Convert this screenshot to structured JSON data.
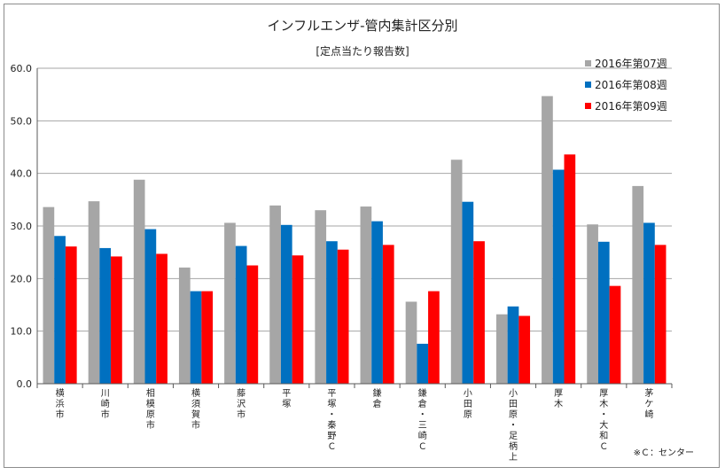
{
  "chart_data": {
    "type": "bar",
    "title": "インフルエンザ-管内集計区分別",
    "subtitle": "[定点当たり報告数]",
    "footnote": "※Ｃ：センター",
    "ylim": [
      0,
      60
    ],
    "yticks": [
      "0.0",
      "10.0",
      "20.0",
      "30.0",
      "40.0",
      "50.0",
      "60.0"
    ],
    "grid": true,
    "legend_position": "top-right",
    "colors": [
      "#a6a6a6",
      "#0070c0",
      "#ff0000"
    ],
    "categories": [
      [
        "横",
        "浜",
        "市"
      ],
      [
        "川",
        "崎",
        "市"
      ],
      [
        "相",
        "模",
        "原",
        "市"
      ],
      [
        "横",
        "須",
        "賀",
        "市"
      ],
      [
        "藤",
        "沢",
        "市"
      ],
      [
        "平",
        "塚"
      ],
      [
        "平",
        "塚",
        "・",
        "秦",
        "野",
        "Ｃ"
      ],
      [
        "鎌",
        "倉"
      ],
      [
        "鎌",
        "倉",
        "・",
        "三",
        "崎",
        "Ｃ"
      ],
      [
        "小",
        "田",
        "原"
      ],
      [
        "小",
        "田",
        "原",
        "・",
        "足",
        "柄",
        "上"
      ],
      [
        "厚",
        "木"
      ],
      [
        "厚",
        "木",
        "・",
        "大",
        "和",
        "Ｃ"
      ],
      [
        "茅",
        "ケ",
        "崎"
      ]
    ],
    "series": [
      {
        "name": "2016年第07週",
        "values": [
          33.6,
          34.7,
          38.8,
          22.1,
          30.6,
          33.9,
          33.0,
          33.7,
          15.6,
          42.6,
          13.2,
          54.7,
          30.3,
          37.6
        ]
      },
      {
        "name": "2016年第08週",
        "values": [
          28.1,
          25.8,
          29.4,
          17.6,
          26.2,
          30.2,
          27.1,
          30.9,
          7.6,
          34.6,
          14.7,
          40.7,
          27.0,
          30.6
        ]
      },
      {
        "name": "2016年第09週",
        "values": [
          26.1,
          24.2,
          24.7,
          17.6,
          22.5,
          24.4,
          25.5,
          26.4,
          17.6,
          27.1,
          12.9,
          43.6,
          18.6,
          26.4
        ]
      }
    ]
  }
}
